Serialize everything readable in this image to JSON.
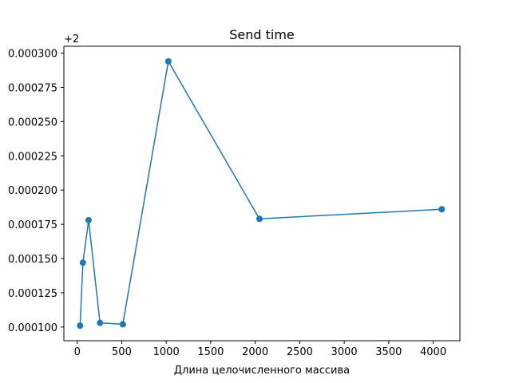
{
  "chart_data": {
    "type": "line",
    "title": "Send time",
    "xlabel": "Длина целочисленного массива",
    "ylabel": "",
    "y_offset_label": "+2",
    "xlim": [
      -150,
      4300
    ],
    "ylim": [
      9e-05,
      0.000305
    ],
    "xticks": [
      0,
      500,
      1000,
      1500,
      2000,
      2500,
      3000,
      3500,
      4000
    ],
    "xtick_labels": [
      "0",
      "500",
      "1000",
      "1500",
      "2000",
      "2500",
      "3000",
      "3500",
      "4000"
    ],
    "yticks": [
      0.0001,
      0.000125,
      0.00015,
      0.000175,
      0.0002,
      0.000225,
      0.00025,
      0.000275,
      0.0003
    ],
    "ytick_labels": [
      "0.000100",
      "0.000125",
      "0.000150",
      "0.000175",
      "0.000200",
      "0.000225",
      "0.000250",
      "0.000275",
      "0.000300"
    ],
    "grid": false,
    "series": [
      {
        "color": "#1f77b4",
        "marker": "circle",
        "points": [
          {
            "x": 32,
            "y": 0.000101
          },
          {
            "x": 64,
            "y": 0.000147
          },
          {
            "x": 128,
            "y": 0.000178
          },
          {
            "x": 256,
            "y": 0.000103
          },
          {
            "x": 512,
            "y": 0.000102
          },
          {
            "x": 1024,
            "y": 0.000294
          },
          {
            "x": 2048,
            "y": 0.000179
          },
          {
            "x": 4096,
            "y": 0.000186
          }
        ]
      }
    ]
  }
}
